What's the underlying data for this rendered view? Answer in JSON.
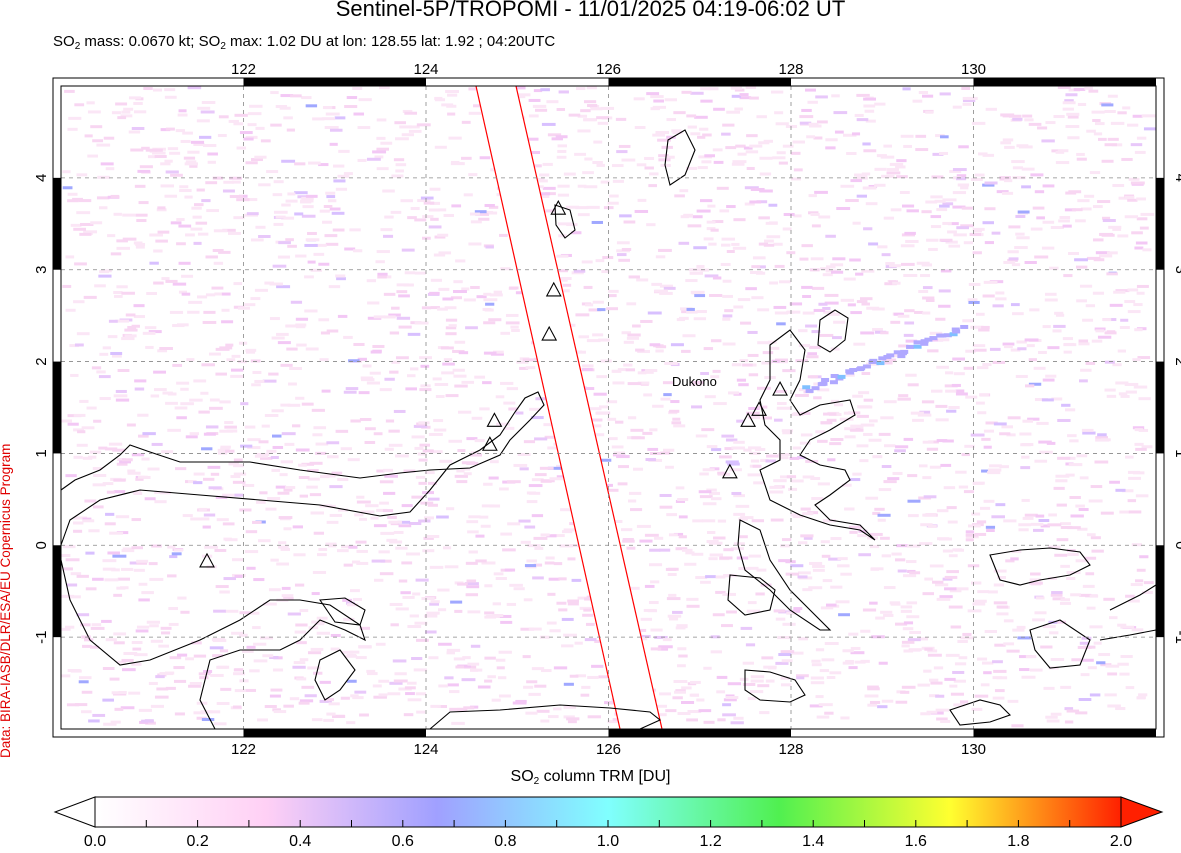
{
  "header": {
    "title": "Sentinel-5P/TROPOMI - 11/01/2025 04:19-06:02 UT",
    "subtitle_parts": [
      "SO",
      "2",
      " mass: 0.0670 kt; SO",
      "2",
      " max: 1.02 DU at lon: 128.55 lat: 1.92 ; 04:20UTC"
    ]
  },
  "credit": "Data: BIRA-IASB/DLR/ESA/EU Copernicus Program",
  "map": {
    "lon_range": [
      120,
      132
    ],
    "lat_range": [
      -2,
      5
    ],
    "lon_ticks": [
      "122",
      "124",
      "126",
      "128",
      "130"
    ],
    "lat_ticks": [
      "4",
      "3",
      "2",
      "1",
      "0",
      "-1"
    ],
    "grid": true,
    "volcano_label": "Dukono",
    "volcanoes": [
      {
        "lon": 121.6,
        "lat": -0.17
      },
      {
        "lon": 124.75,
        "lat": 1.36
      },
      {
        "lon": 124.7,
        "lat": 1.1
      },
      {
        "lon": 125.45,
        "lat": 3.67
      },
      {
        "lon": 125.4,
        "lat": 2.78
      },
      {
        "lon": 125.35,
        "lat": 2.3
      },
      {
        "lon": 127.88,
        "lat": 1.7
      },
      {
        "lon": 127.65,
        "lat": 1.48
      },
      {
        "lon": 127.53,
        "lat": 1.36
      },
      {
        "lon": 127.33,
        "lat": 0.8
      }
    ],
    "swath_gap_colour": "#ffffff",
    "swath_edge_colour": "#ff0000"
  },
  "colorbar": {
    "label_parts": [
      "SO",
      "2",
      " column TRM [DU]"
    ],
    "ticks": [
      "0.0",
      "0.2",
      "0.4",
      "0.6",
      "0.8",
      "1.0",
      "1.2",
      "1.4",
      "1.6",
      "1.8",
      "2.0"
    ],
    "range": [
      0,
      2
    ],
    "colors": [
      "#ffffff",
      "#ffd0f5",
      "#a0a0ff",
      "#80ffff",
      "#50f050",
      "#ffff30",
      "#ff2000"
    ]
  }
}
